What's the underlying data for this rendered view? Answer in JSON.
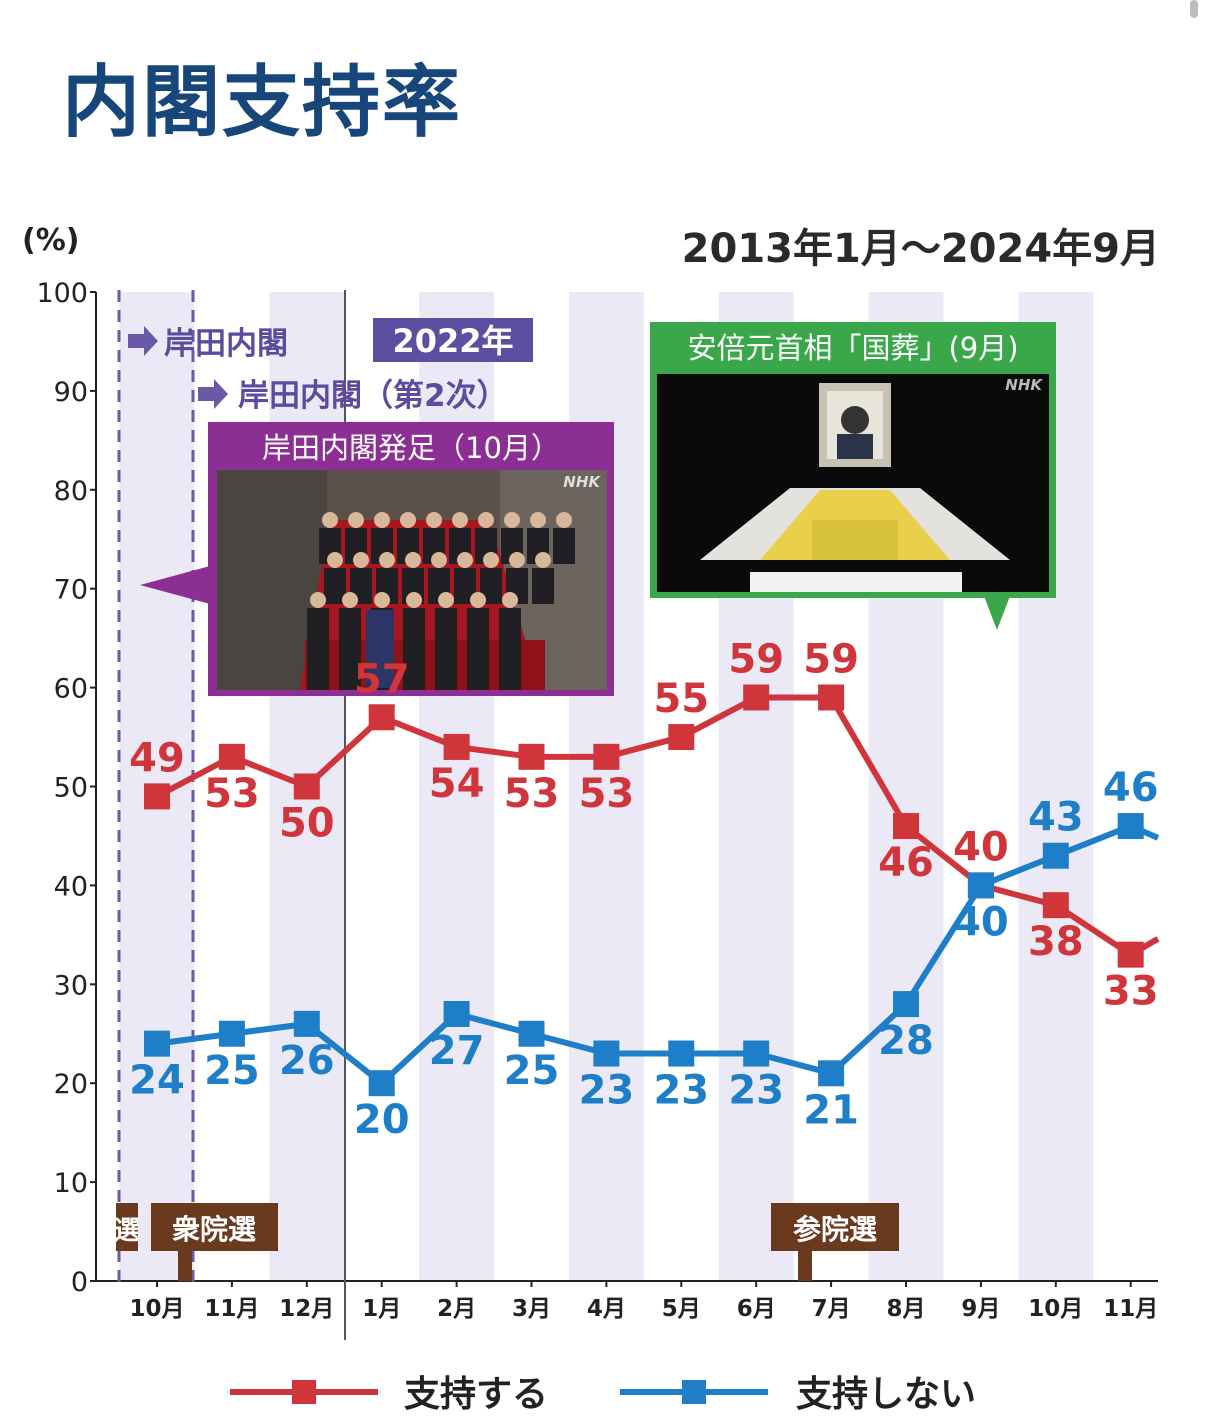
{
  "page": {
    "title": "内閣支持率"
  },
  "chart_data": {
    "type": "line",
    "unit_label": "(%)",
    "period_label": "2013年1月〜2024年9月",
    "year_label": "2022年",
    "ylim": [
      0,
      100
    ],
    "y_ticks": [
      "0",
      "10",
      "20",
      "30",
      "40",
      "50",
      "60",
      "70",
      "80",
      "90",
      "100"
    ],
    "categories": [
      "10月",
      "11月",
      "12月",
      "1月",
      "2月",
      "3月",
      "4月",
      "5月",
      "6月",
      "7月",
      "8月",
      "9月",
      "10月",
      "11月"
    ],
    "series": [
      {
        "name": "支持する",
        "color": "#d0353b",
        "values": [
          49,
          53,
          50,
          57,
          54,
          53,
          53,
          55,
          59,
          59,
          46,
          40,
          38,
          33
        ],
        "labels": [
          "49",
          "53",
          "50",
          "57",
          "54",
          "53",
          "53",
          "55",
          "59",
          "59",
          "46",
          "40",
          "38",
          "33"
        ]
      },
      {
        "name": "支持しない",
        "color": "#1e7ec8",
        "values": [
          24,
          25,
          26,
          20,
          27,
          25,
          23,
          23,
          23,
          21,
          28,
          40,
          43,
          46
        ],
        "labels": [
          "24",
          "25",
          "26",
          "20",
          "27",
          "25",
          "23",
          "23",
          "23",
          "21",
          "28",
          "40",
          "43",
          "46"
        ]
      }
    ],
    "annotations": {
      "cabinet1": "岸田内閣",
      "cabinet2": "岸田内閣（第2次）",
      "photo1_title": "岸田内閣発足（10月）",
      "photo2_title": "安倍元首相「国葬」(9月)",
      "photo_credit": "NHK",
      "election_partial": "選",
      "election_lower": "衆院選",
      "election_upper": "参院選"
    },
    "grid": false,
    "legend": "bottom"
  }
}
